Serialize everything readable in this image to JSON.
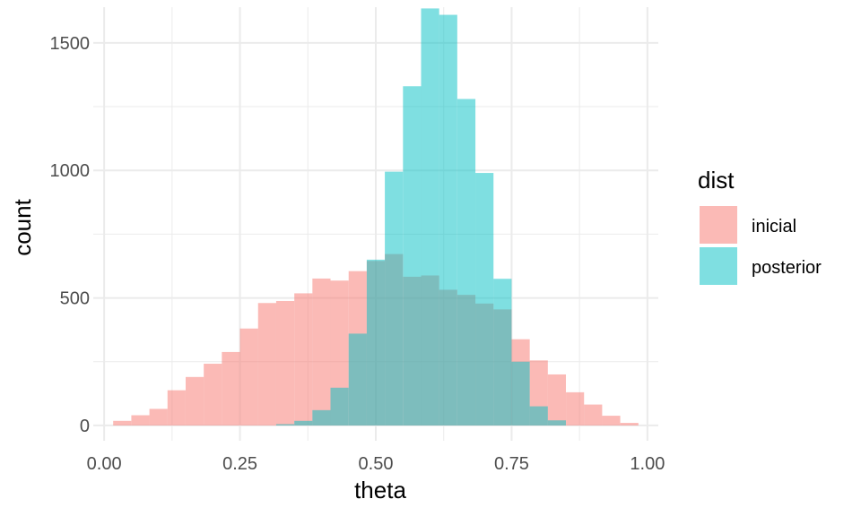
{
  "chart_data": {
    "type": "bar",
    "subtype": "histogram",
    "xlabel": "theta",
    "ylabel": "count",
    "xlim": [
      -0.02,
      1.02
    ],
    "ylim": [
      -60,
      1640
    ],
    "x_ticks": [
      0.0,
      0.25,
      0.5,
      0.75,
      1.0
    ],
    "x_tick_labels": [
      "0.00",
      "0.25",
      "0.50",
      "0.75",
      "1.00"
    ],
    "y_ticks": [
      0,
      500,
      1000,
      1500
    ],
    "y_tick_labels": [
      "0",
      "500",
      "1000",
      "1500"
    ],
    "grid": true,
    "legend": {
      "title": "dist",
      "position": "right"
    },
    "bin_width": 0.0333,
    "bin_centers": [
      0.0333,
      0.0667,
      0.1,
      0.1333,
      0.1667,
      0.2,
      0.2333,
      0.2667,
      0.3,
      0.3333,
      0.3667,
      0.4,
      0.4333,
      0.4667,
      0.5,
      0.5333,
      0.5667,
      0.6,
      0.6333,
      0.6667,
      0.7,
      0.7333,
      0.7667,
      0.8,
      0.8333,
      0.8667,
      0.9,
      0.9333,
      0.9667
    ],
    "series": [
      {
        "name": "inicial",
        "color": "#F8766D",
        "opacity": 0.5,
        "values": [
          18,
          40,
          65,
          138,
          190,
          242,
          288,
          380,
          480,
          488,
          518,
          576,
          568,
          605,
          645,
          672,
          583,
          588,
          532,
          512,
          478,
          455,
          338,
          255,
          200,
          130,
          82,
          38,
          10
        ]
      },
      {
        "name": "posterior",
        "color": "#00BFC4",
        "opacity": 0.5,
        "values": [
          0,
          0,
          0,
          0,
          0,
          0,
          0,
          0,
          0,
          5,
          18,
          60,
          148,
          360,
          650,
          995,
          1330,
          1635,
          1610,
          1280,
          990,
          575,
          250,
          75,
          20,
          0,
          0,
          0,
          0
        ]
      }
    ]
  }
}
